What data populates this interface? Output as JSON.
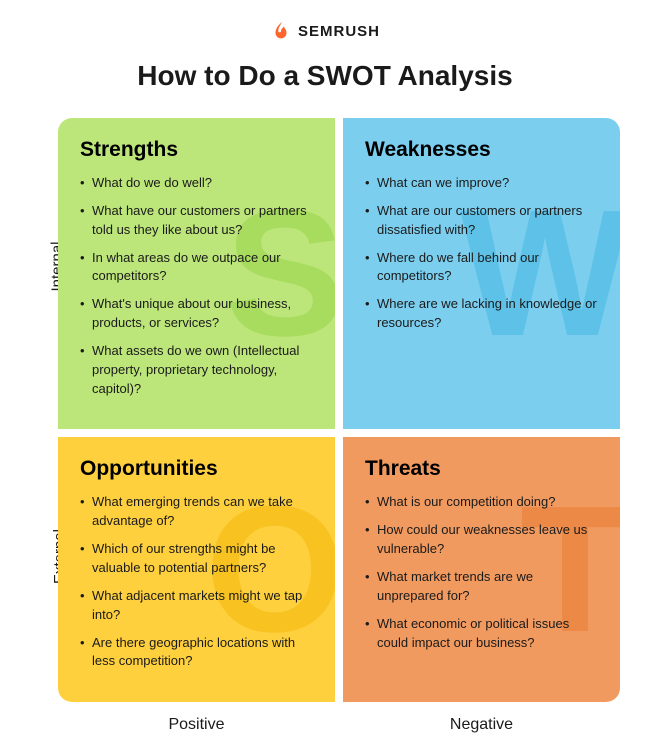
{
  "brand": {
    "name": "SEMRUSH",
    "icon_color": "#ff642d"
  },
  "title": "How to Do a SWOT Analysis",
  "axis": {
    "row_top": "Internal",
    "row_bottom": "External",
    "col_left": "Positive",
    "col_right": "Negative"
  },
  "colors": {
    "strengths_bg": "#bde67a",
    "strengths_watermark": "#8fd13f",
    "weaknesses_bg": "#7cceef",
    "weaknesses_watermark": "#3ab4e0",
    "opportunities_bg": "#ffd03e",
    "opportunities_watermark": "#f0b400",
    "threats_bg": "#f19a5f",
    "threats_watermark": "#e8762a",
    "text": "#1a1a1a",
    "title_fontsize": 28,
    "quad_title_fontsize": 21,
    "item_fontsize": 13,
    "watermark_fontsize": 180,
    "watermark_opacity": 0.45,
    "gap": 8,
    "border_radius": 14
  },
  "quads": {
    "strengths": {
      "letter": "S",
      "title": "Strengths",
      "items": [
        "What do we do well?",
        "What have our customers or partners told us they like about us?",
        "In what areas do we outpace our competitors?",
        "What's unique about our business, products, or services?",
        "What assets do we own (Intellectual property, proprietary technology, capitol)?"
      ]
    },
    "weaknesses": {
      "letter": "W",
      "title": "Weaknesses",
      "items": [
        "What can we improve?",
        "What are our customers or partners dissatisfied with?",
        "Where do we fall behind our competitors?",
        "Where are we lacking in knowledge or resources?"
      ]
    },
    "opportunities": {
      "letter": "O",
      "title": "Opportunities",
      "items": [
        "What emerging trends can we take advantage of?",
        "Which of our strengths might be valuable to potential partners?",
        "What adjacent markets might we tap into?",
        "Are there geographic locations with less competition?"
      ]
    },
    "threats": {
      "letter": "T",
      "title": "Threats",
      "items": [
        "What is our competition doing?",
        "How could our weaknesses leave us vulnerable?",
        "What market trends are we unprepared for?",
        "What economic or political issues could impact our business?"
      ]
    }
  }
}
